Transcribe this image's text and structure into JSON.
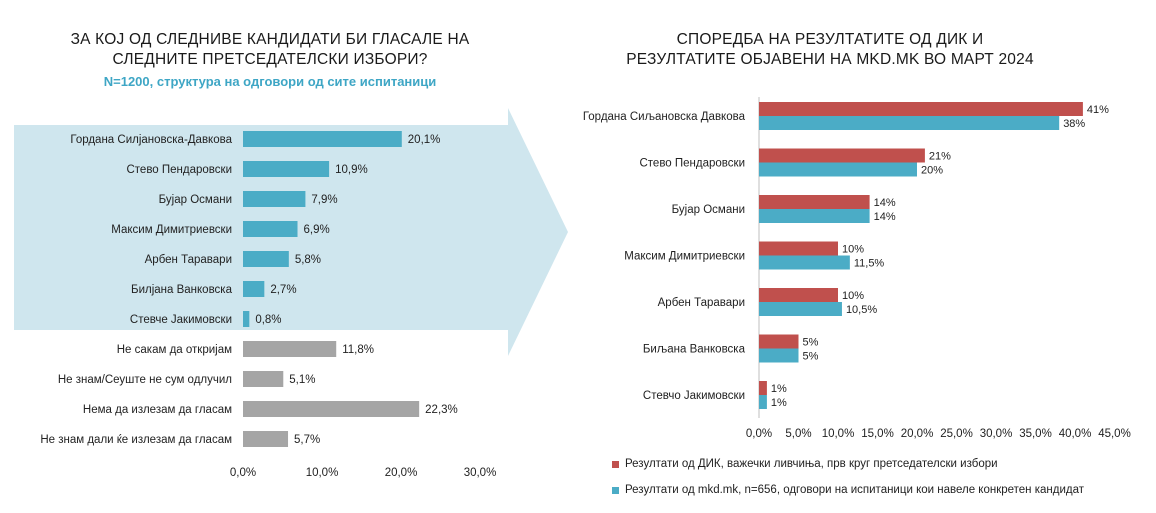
{
  "left_panel": {
    "title_line1": "ЗА КОЈ ОД СЛЕДНИВЕ КАНДИДАТИ БИ ГЛАСАЛЕ НА",
    "title_line2": "СЛЕДНИТЕ ПРЕТСЕДАТЕЛСКИ ИЗБОРИ?",
    "subtitle": "N=1200, структура на одговори од сите испитаници"
  },
  "right_panel": {
    "title_line1": "СПОРЕДБА НА РЕЗУЛТАТИТЕ ОД ДИК И",
    "title_line2": "РЕЗУЛТАТИТЕ ОБЈАВЕНИ НА MKD.MK ВО МАРТ 2024"
  },
  "colors": {
    "teal": "#4bacc6",
    "grey": "#a5a5a5",
    "red": "#c0504d",
    "arrow": "#cfe6ee"
  },
  "chart_data": [
    {
      "type": "bar",
      "orientation": "horizontal",
      "categories": [
        "Гордана Силјановска-Давкова",
        "Стево Пендаровски",
        "Бујар Османи",
        "Максим Димитриевски",
        "Арбен Таравари",
        "Билјана Ванковска",
        "Стевче Јакимовски",
        "Не сакам да откријам",
        "Не знам/Сеуште не сум одлучил",
        "Нема да излезам да гласам",
        "Не знам дали ќе излезам да гласам"
      ],
      "values": [
        20.1,
        10.9,
        7.9,
        6.9,
        5.8,
        2.7,
        0.8,
        11.8,
        5.1,
        22.3,
        5.7
      ],
      "value_labels": [
        "20,1%",
        "10,9%",
        "7,9%",
        "6,9%",
        "5,8%",
        "2,7%",
        "0,8%",
        "11,8%",
        "5,1%",
        "22,3%",
        "5,7%"
      ],
      "bar_colors": [
        "teal",
        "teal",
        "teal",
        "teal",
        "teal",
        "teal",
        "teal",
        "grey",
        "grey",
        "grey",
        "grey"
      ],
      "xlim": [
        0,
        30
      ],
      "xticks": [
        "0,0%",
        "10,0%",
        "20,0%",
        "30,0%"
      ],
      "grid": false
    },
    {
      "type": "bar",
      "orientation": "horizontal",
      "categories": [
        "Гордана Сиљановска Давкова",
        "Стево Пендаровски",
        "Бујар Османи",
        "Максим Димитриевски",
        "Арбен Таравари",
        "Биљана Ванковска",
        "Стевчо Јакимовски"
      ],
      "series": [
        {
          "name": "Резултати од ДИК, важечки ливчиња, прв круг претседателски избори",
          "color": "red",
          "values": [
            41,
            21,
            14,
            10,
            10,
            5,
            1
          ],
          "value_labels": [
            "41%",
            "21%",
            "14%",
            "10%",
            "10%",
            "5%",
            "1%"
          ]
        },
        {
          "name": "Резултати од mkd.mk, n=656, одговори на испитаници кои навеле конкретен кандидат",
          "color": "teal",
          "values": [
            38,
            20,
            14,
            11.5,
            10.5,
            5,
            1
          ],
          "value_labels": [
            "38%",
            "20%",
            "14%",
            "11,5%",
            "10,5%",
            "5%",
            "1%"
          ]
        }
      ],
      "xlim": [
        0,
        45
      ],
      "xticks": [
        "0,0%",
        "5,0%",
        "10,0%",
        "15,0%",
        "20,0%",
        "25,0%",
        "30,0%",
        "35,0%",
        "40,0%",
        "45,0%"
      ],
      "legend_position": "bottom",
      "grid": false
    }
  ]
}
